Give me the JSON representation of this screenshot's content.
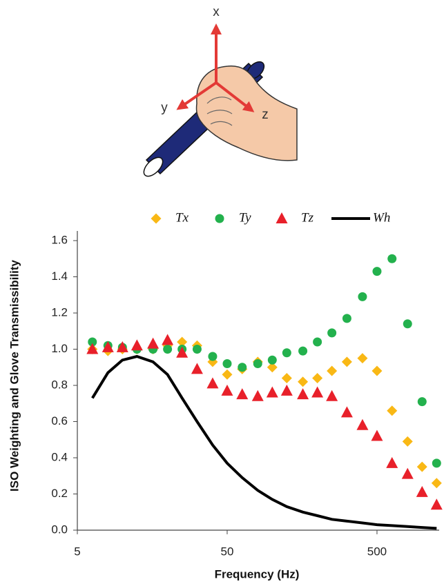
{
  "illustration": {
    "axis_labels": [
      "x",
      "y",
      "z"
    ]
  },
  "chart_data": {
    "type": "scatter",
    "x_label": "Frequency  (Hz)",
    "y_label": "ISO Weighting and Glove Transmissibility",
    "x": [
      6.3,
      8,
      10,
      12.5,
      16,
      20,
      25,
      31.5,
      40,
      50,
      63,
      80,
      100,
      125,
      160,
      200,
      250,
      315,
      400,
      500,
      630,
      800,
      1000,
      1250
    ],
    "x_log": true,
    "xlim": [
      5,
      1300
    ],
    "xticks": [
      5,
      50,
      500
    ],
    "ylim": [
      0,
      1.6
    ],
    "yticks": [
      {
        "value": 0,
        "label": "0.0"
      },
      0.2,
      0.4,
      0.6,
      0.8,
      {
        "value": 1,
        "label": "1.0"
      },
      1.2,
      1.4,
      1.6
    ],
    "grid": false,
    "legend": "top",
    "series": [
      {
        "name": "Tx",
        "color": "#f9b815",
        "marker": "diamond",
        "values": [
          1.0,
          0.99,
          1.0,
          1.0,
          1.0,
          1.02,
          1.04,
          1.02,
          0.93,
          0.86,
          0.89,
          0.93,
          0.9,
          0.84,
          0.82,
          0.84,
          0.88,
          0.93,
          0.95,
          0.88,
          0.66,
          0.49,
          0.35,
          0.26
        ]
      },
      {
        "name": "Ty",
        "color": "#23b14d",
        "marker": "circle",
        "values": [
          1.04,
          1.02,
          1.01,
          1.0,
          1.0,
          1.0,
          1.0,
          1.0,
          0.96,
          0.92,
          0.9,
          0.92,
          0.94,
          0.98,
          0.99,
          1.04,
          1.09,
          1.17,
          1.29,
          1.43,
          1.5,
          1.14,
          0.71,
          0.37
        ]
      },
      {
        "name": "Tz",
        "color": "#e8202a",
        "marker": "triangle",
        "values": [
          1.0,
          1.01,
          1.01,
          1.02,
          1.03,
          1.05,
          0.98,
          0.89,
          0.81,
          0.77,
          0.75,
          0.74,
          0.76,
          0.77,
          0.75,
          0.76,
          0.74,
          0.65,
          0.58,
          0.52,
          0.37,
          0.31,
          0.21,
          0.14
        ]
      },
      {
        "name": "Wh",
        "color": "#000000",
        "marker": "line",
        "values": [
          0.73,
          0.87,
          0.94,
          0.96,
          0.93,
          0.86,
          0.73,
          0.6,
          0.47,
          0.37,
          0.29,
          0.22,
          0.17,
          0.13,
          0.1,
          0.08,
          0.06,
          0.05,
          0.04,
          0.03,
          0.025,
          0.02,
          0.015,
          0.01
        ]
      }
    ]
  }
}
